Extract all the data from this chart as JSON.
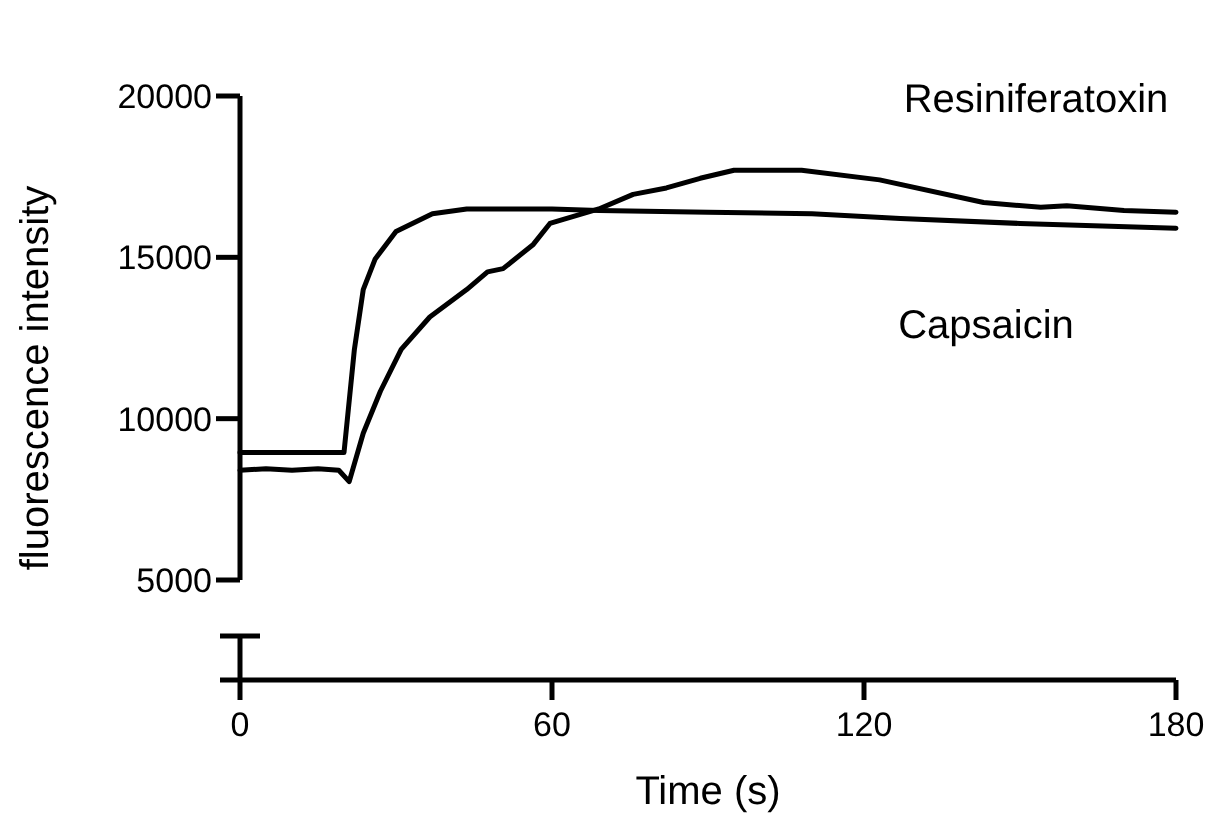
{
  "chart_data": {
    "type": "line",
    "xlabel": "Time (s)",
    "ylabel": "fluorescence intensity",
    "xlim": [
      0,
      180
    ],
    "xticks": [
      0,
      60,
      120,
      180
    ],
    "ylim": [
      5000,
      20000
    ],
    "yticks": [
      5000,
      10000,
      15000,
      20000
    ],
    "grid": false,
    "marker": "none",
    "line_style": "solid",
    "series": [
      {
        "name": "Resiniferatoxin",
        "color": "#000000",
        "x": [
          0,
          5,
          10,
          15,
          19,
          21,
          23.7,
          27,
          31,
          36.5,
          43.6,
          47.6,
          50.6,
          56.4,
          59.6,
          69,
          75.6,
          82,
          88.5,
          95,
          108,
          123,
          143,
          154,
          159,
          170,
          180
        ],
        "values": [
          8400,
          8450,
          8400,
          8450,
          8400,
          8050,
          9550,
          10850,
          12150,
          13150,
          14000,
          14550,
          14650,
          15400,
          16050,
          16500,
          16950,
          17150,
          17450,
          17700,
          17700,
          17400,
          16700,
          16550,
          16600,
          16450,
          16400
        ]
      },
      {
        "name": "Capsaicin",
        "color": "#000000",
        "x": [
          0,
          5,
          10,
          15,
          20,
          22,
          23.7,
          26,
          30,
          37,
          43.6,
          60,
          69,
          90,
          110,
          127,
          150,
          180
        ],
        "values": [
          8950,
          8950,
          8950,
          8950,
          8950,
          12150,
          14000,
          14950,
          15800,
          16350,
          16500,
          16500,
          16450,
          16400,
          16350,
          16200,
          16050,
          15900
        ]
      }
    ]
  }
}
